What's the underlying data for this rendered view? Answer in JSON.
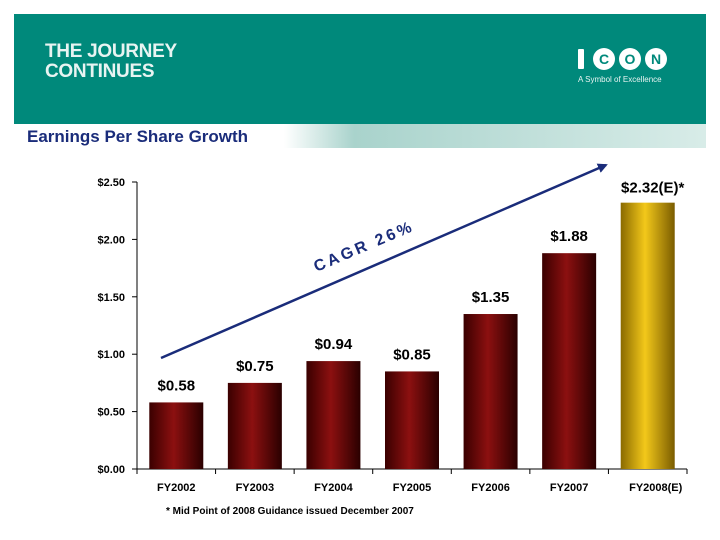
{
  "header": {
    "headline_line1": "THE JOURNEY",
    "headline_line2": "CONTINUES",
    "logo_text": "ICON",
    "logo_tagline": "A Symbol of Excellence",
    "brand_color": "#00897b"
  },
  "subtitle": "Earnings Per Share Growth",
  "chart_data": {
    "type": "bar",
    "title": "Earnings Per Share Growth",
    "categories": [
      "FY2002",
      "FY2003",
      "FY2004",
      "FY2005",
      "FY2006",
      "FY2007",
      "FY2008"
    ],
    "category_suffix_last": "(E)",
    "values": [
      0.58,
      0.75,
      0.94,
      0.85,
      1.35,
      1.88,
      2.32
    ],
    "data_labels": [
      "$0.58",
      "$0.75",
      "$0.94",
      "$0.85",
      "$1.35",
      "$1.88",
      "$2.32(E)*"
    ],
    "estimate_index": 6,
    "yticks": [
      "$0.00",
      "$0.50",
      "$1.00",
      "$1.50",
      "$2.00",
      "$2.50"
    ],
    "ytick_values": [
      0,
      0.5,
      1.0,
      1.5,
      2.0,
      2.5
    ],
    "ylim": [
      0,
      2.5
    ],
    "bar_color": "#7a0a0a",
    "estimate_color": "#d4a800",
    "trend_annotation": "CAGR 26%",
    "xlabel": "",
    "ylabel": ""
  },
  "footnote": "* Mid Point of 2008 Guidance issued December 2007"
}
